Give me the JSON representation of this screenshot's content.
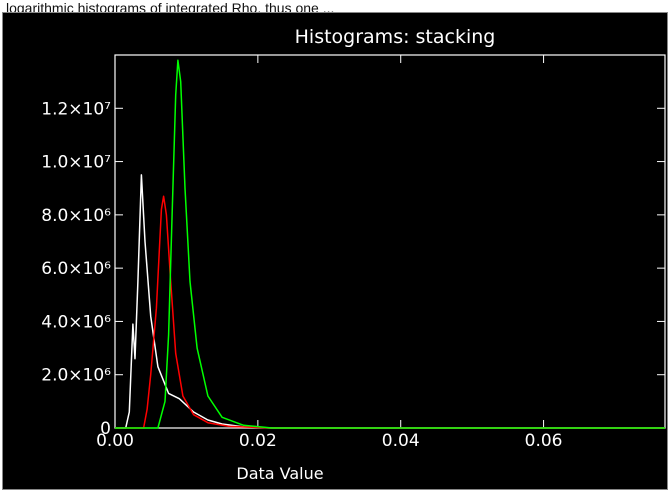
{
  "top_caption": "logarithmic histograms of integrated Rho, thus one ...",
  "chart_data": {
    "type": "line",
    "title": "Histograms: stacking",
    "xlabel": "Data Value",
    "ylabel": "",
    "xlim": [
      0.0,
      0.077
    ],
    "ylim": [
      0,
      14000000
    ],
    "x_ticks": [
      0.0,
      0.02,
      0.04,
      0.06
    ],
    "x_tick_labels": [
      "0.00",
      "0.02",
      "0.04",
      "0.06"
    ],
    "y_ticks": [
      0,
      2000000,
      4000000,
      6000000,
      8000000,
      10000000,
      12000000
    ],
    "y_tick_labels": [
      "0",
      "2.0×10⁶",
      "4.0×10⁶",
      "6.0×10⁶",
      "8.0×10⁶",
      "1.0×10⁷",
      "1.2×10⁷"
    ],
    "grid": false,
    "series": [
      {
        "color": "#ffffff",
        "points": [
          [
            0.0,
            0
          ],
          [
            0.0015,
            0
          ],
          [
            0.002,
            600000
          ],
          [
            0.0025,
            3900000
          ],
          [
            0.0028,
            2600000
          ],
          [
            0.0032,
            5500000
          ],
          [
            0.0037,
            9500000
          ],
          [
            0.0042,
            7000000
          ],
          [
            0.005,
            4200000
          ],
          [
            0.006,
            2300000
          ],
          [
            0.0075,
            1300000
          ],
          [
            0.009,
            1100000
          ],
          [
            0.011,
            600000
          ],
          [
            0.013,
            300000
          ],
          [
            0.015,
            150000
          ],
          [
            0.018,
            40000
          ],
          [
            0.022,
            0
          ],
          [
            0.077,
            0
          ]
        ]
      },
      {
        "color": "#ff0000",
        "points": [
          [
            0.0,
            0
          ],
          [
            0.004,
            0
          ],
          [
            0.0045,
            700000
          ],
          [
            0.005,
            2000000
          ],
          [
            0.0058,
            4500000
          ],
          [
            0.0065,
            8200000
          ],
          [
            0.0068,
            8700000
          ],
          [
            0.0072,
            8000000
          ],
          [
            0.0078,
            5500000
          ],
          [
            0.0085,
            2800000
          ],
          [
            0.0095,
            1200000
          ],
          [
            0.011,
            500000
          ],
          [
            0.013,
            200000
          ],
          [
            0.016,
            60000
          ],
          [
            0.022,
            0
          ],
          [
            0.077,
            0
          ]
        ]
      },
      {
        "color": "#00ff00",
        "points": [
          [
            0.0,
            0
          ],
          [
            0.006,
            0
          ],
          [
            0.007,
            1000000
          ],
          [
            0.0075,
            3500000
          ],
          [
            0.008,
            8000000
          ],
          [
            0.0085,
            12500000
          ],
          [
            0.0088,
            13800000
          ],
          [
            0.0092,
            13000000
          ],
          [
            0.0098,
            9000000
          ],
          [
            0.0105,
            5500000
          ],
          [
            0.0115,
            3000000
          ],
          [
            0.013,
            1200000
          ],
          [
            0.015,
            400000
          ],
          [
            0.018,
            100000
          ],
          [
            0.022,
            0
          ],
          [
            0.077,
            0
          ]
        ]
      }
    ]
  }
}
